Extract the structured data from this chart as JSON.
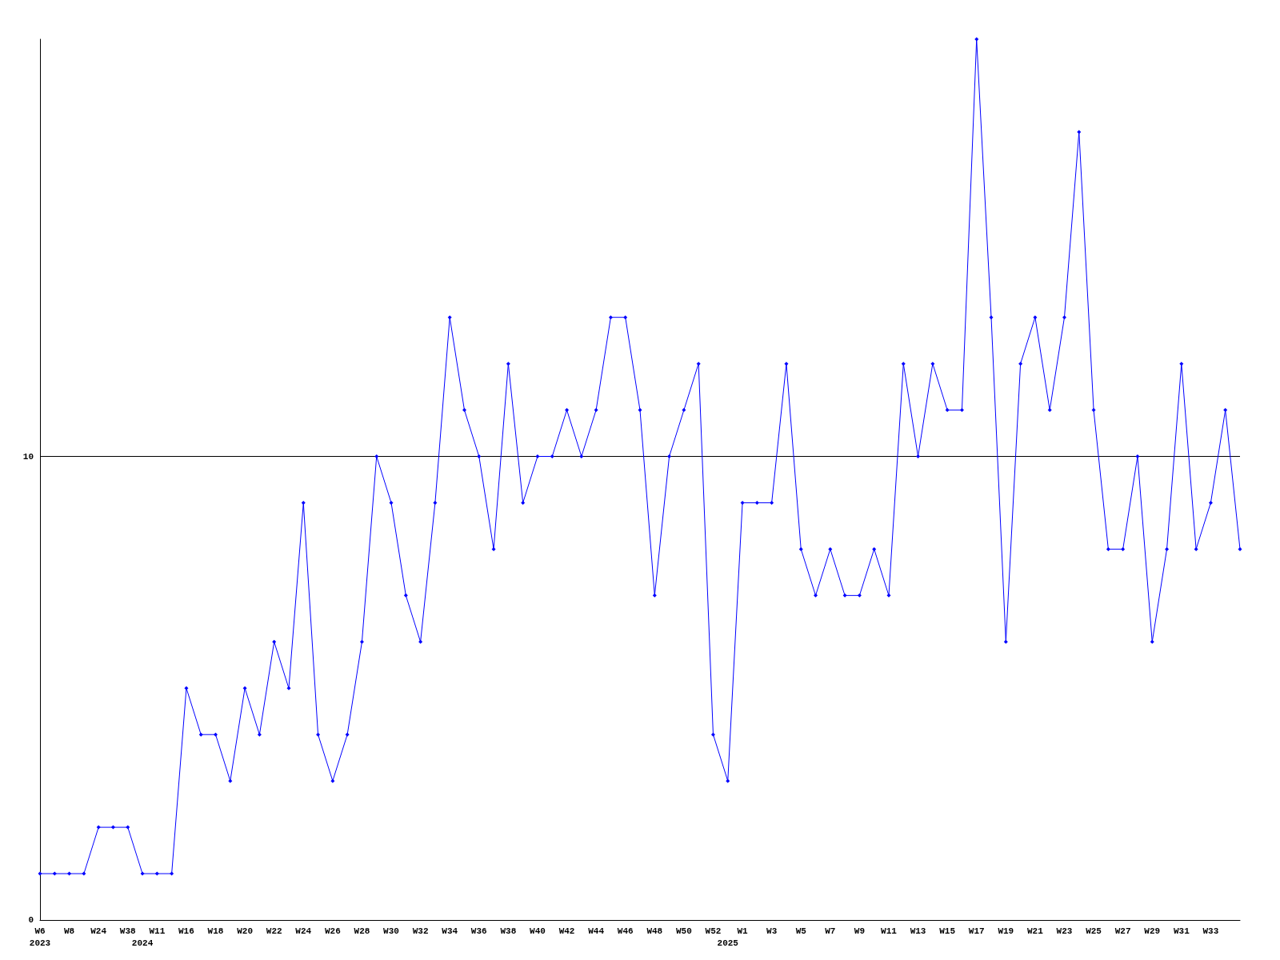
{
  "chart_data": {
    "type": "line",
    "categories": [
      "W6\n2023",
      null,
      "W8",
      null,
      "W24",
      null,
      "W38",
      "\n2024",
      "W11",
      null,
      "W16",
      null,
      "W18",
      null,
      "W20",
      null,
      "W22",
      null,
      "W24",
      null,
      "W26",
      null,
      "W28",
      null,
      "W30",
      null,
      "W32",
      null,
      "W34",
      null,
      "W36",
      null,
      "W38",
      null,
      "W40",
      null,
      "W42",
      null,
      "W44",
      null,
      "W46",
      null,
      "W48",
      null,
      "W50",
      null,
      "W52",
      "\n2025",
      "W1",
      null,
      "W3",
      null,
      "W5",
      null,
      "W7",
      null,
      "W9",
      null,
      "W11",
      null,
      "W13",
      null,
      "W15",
      null,
      "W17",
      null,
      "W19",
      null,
      "W21",
      null,
      "W23",
      null,
      "W25",
      null,
      "W27",
      null,
      "W29",
      null,
      "W31",
      null,
      "W33",
      null,
      null
    ],
    "series": [
      {
        "color": "#0000ff",
        "values": [
          1,
          1,
          1,
          1,
          2,
          2,
          2,
          1,
          1,
          1,
          5,
          4,
          4,
          3,
          5,
          4,
          6,
          5,
          9,
          4,
          3,
          4,
          6,
          10,
          9,
          7,
          6,
          9,
          13,
          11,
          10,
          8,
          12,
          9,
          10,
          10,
          11,
          10,
          11,
          13,
          13,
          11,
          7,
          10,
          11,
          12,
          4,
          3,
          9,
          9,
          9,
          12,
          8,
          7,
          8,
          7,
          7,
          8,
          7,
          12,
          10,
          12,
          11,
          11,
          19,
          13,
          6,
          12,
          13,
          11,
          13,
          17,
          11,
          8,
          8,
          10,
          6,
          8,
          12,
          8,
          9,
          11,
          8
        ]
      }
    ],
    "ylim": [
      0,
      19
    ],
    "yticks": [
      0,
      10
    ],
    "grid": "y",
    "marker": "diamond",
    "line_style": "solid"
  }
}
